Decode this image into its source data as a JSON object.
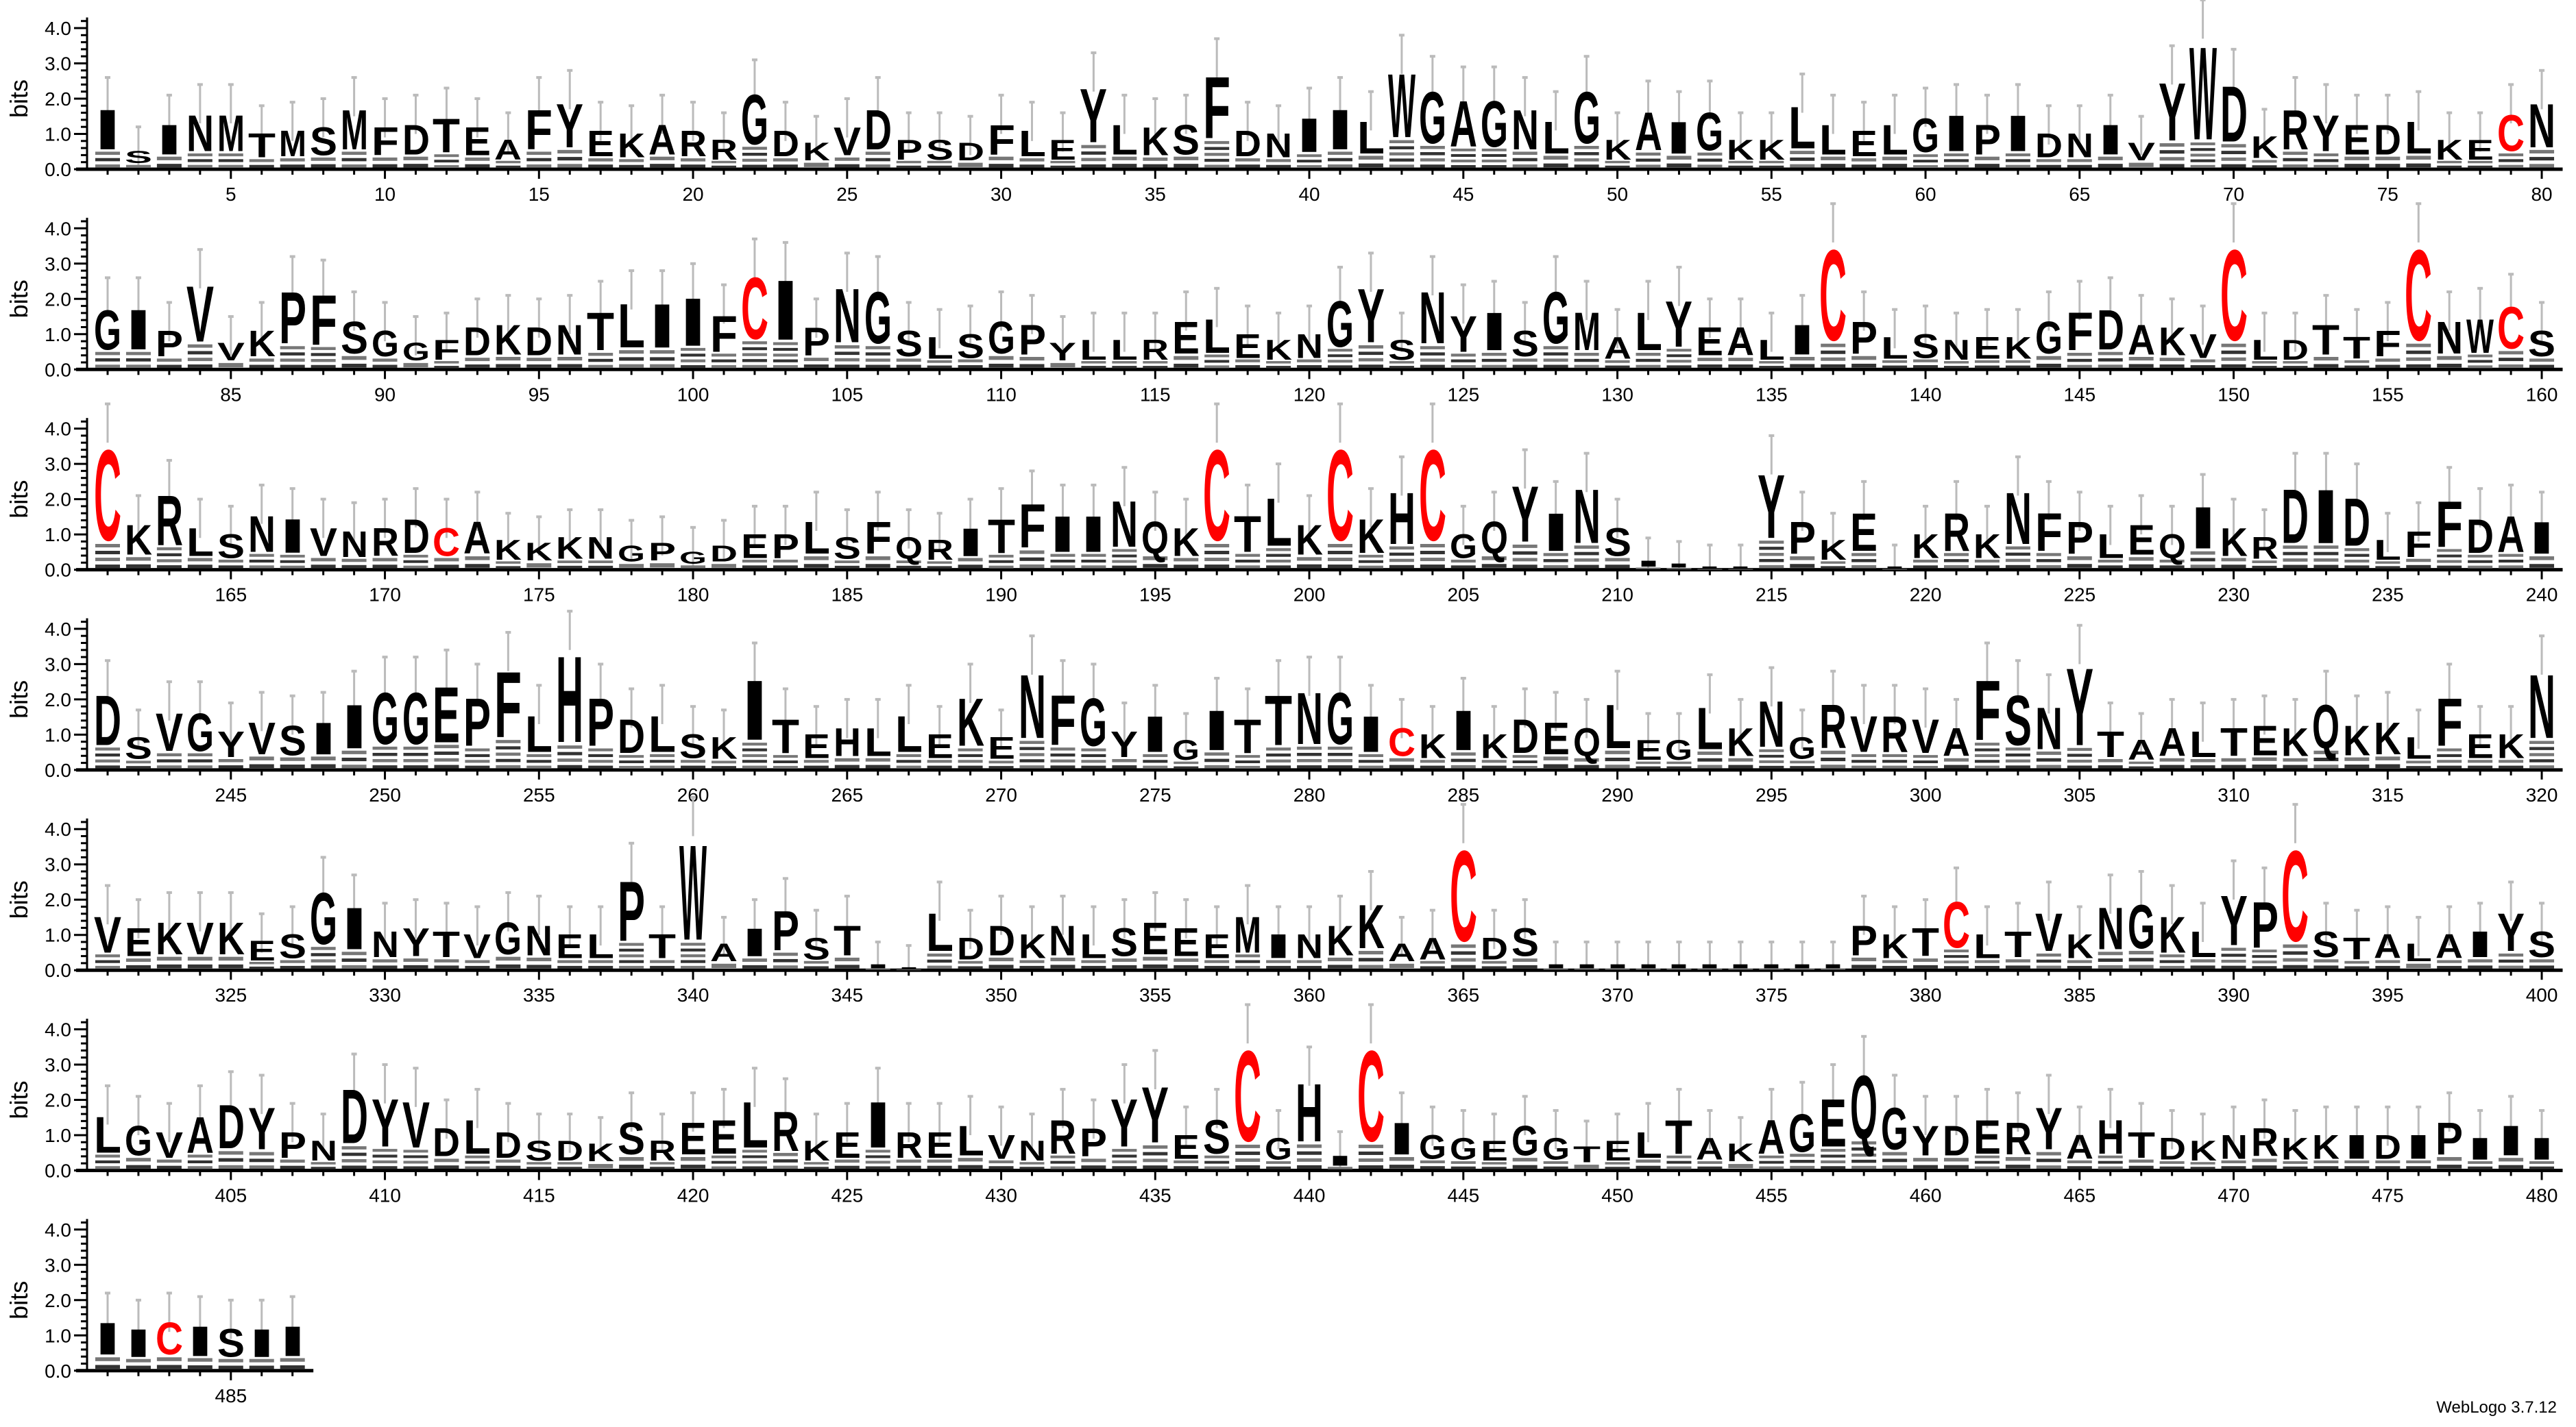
{
  "chart_data": {
    "type": "sequence_logo",
    "ylabel": "bits",
    "ylim": [
      0,
      4.3
    ],
    "ytick_labels": [
      "0.0",
      "1.0",
      "2.0",
      "3.0",
      "4.0"
    ],
    "first_position": 1,
    "last_position": 487,
    "xtick_labels": [
      "5",
      "10",
      "15",
      "20",
      "25",
      "30",
      "35",
      "40",
      "45",
      "50",
      "55",
      "60",
      "65",
      "70",
      "75",
      "80",
      "85",
      "90",
      "95",
      "100",
      "105",
      "110",
      "115",
      "120",
      "125",
      "130",
      "135",
      "140",
      "145",
      "150",
      "155",
      "160",
      "165",
      "170",
      "175",
      "180",
      "185",
      "190",
      "195",
      "200",
      "205",
      "210",
      "215",
      "220",
      "225",
      "230",
      "235",
      "240",
      "245",
      "250",
      "255",
      "260",
      "265",
      "270",
      "275",
      "280",
      "285",
      "290",
      "295",
      "300",
      "305",
      "310",
      "315",
      "320",
      "325",
      "330",
      "335",
      "340",
      "345",
      "350",
      "355",
      "360",
      "365",
      "370",
      "375",
      "380",
      "385",
      "390",
      "395",
      "400",
      "405",
      "410",
      "415",
      "420",
      "425",
      "430",
      "435",
      "440",
      "445",
      "450",
      "455",
      "460",
      "465",
      "470",
      "475",
      "480",
      "485"
    ],
    "letters": "ISINMTMSMFDTEAFYEKARRGDKVDPSDFLEYLKSFDNIILWGAGNLGKAIGKKLLELGIPIDNIVYWDKRYEDLKECNGIPVVKPFSGGFDKDNTLIIFCIPNGSLSGPYLLRELEKNGYSNYISGMALYEALICPLSNEKGFDAKVCLDTTFCNWCSCKRLSNIVNRDCAKKKNGPGDEPLSFQRITFIINQKCTLKCKHCGQYINSIIIIYPKEIKRKNFPLEQIKRDIDLFFDAIDSVGYVSIIGGEPFLHPDLSKITEHLLEKENFGYIGITTNGICKIKDEQLEGLKNGRVRVAFSNYTAALTEKQKKLFEKNVEKVKESGINYTVGNELPTWAIPSTIILDDKNLSEEEMINKKAACDSIIIIIIIIIIPKTCLTVKNGKLYPCSTALAIYSLGVADYPNDYVDLDSDKSREELRKEIRELVNRPYYESCGHICIGGEGGTELTAKAGEQGYDERYAHTDKNRKKIDIPIIIIICISII",
    "bits": [
      2.0,
      0.6,
      1.5,
      1.8,
      1.8,
      1.2,
      1.3,
      1.4,
      2.0,
      1.4,
      1.5,
      1.7,
      1.4,
      1.0,
      2.0,
      2.2,
      1.3,
      1.2,
      1.5,
      1.3,
      1.0,
      2.5,
      1.3,
      0.9,
      1.4,
      2.0,
      1.0,
      1.0,
      0.9,
      1.5,
      1.3,
      1.0,
      2.7,
      1.5,
      1.4,
      1.5,
      3.1,
      1.3,
      1.2,
      1.7,
      2.0,
      1.6,
      3.2,
      2.6,
      2.3,
      2.3,
      2.0,
      1.6,
      2.6,
      1.0,
      1.9,
      1.6,
      1.9,
      1.0,
      1.0,
      2.1,
      1.5,
      1.3,
      1.5,
      1.7,
      1.8,
      1.5,
      1.8,
      1.2,
      1.2,
      1.5,
      0.9,
      2.9,
      4.2,
      2.8,
      1.1,
      2.0,
      1.8,
      1.5,
      1.5,
      1.6,
      1.0,
      1.0,
      1.8,
      2.2,
      2.0,
      2.0,
      1.3,
      2.8,
      0.9,
      1.3,
      2.6,
      2.5,
      1.6,
      1.3,
      0.9,
      1.0,
      1.4,
      1.5,
      1.4,
      1.5,
      1.9,
      2.2,
      2.2,
      2.4,
      1.8,
      3.1,
      3.0,
      1.4,
      2.7,
      2.6,
      1.3,
      1.1,
      1.2,
      1.6,
      1.5,
      0.9,
      1.0,
      1.0,
      1.0,
      1.6,
      1.7,
      1.2,
      1.0,
      1.2,
      2.3,
      2.7,
      1.0,
      2.6,
      1.8,
      1.9,
      1.3,
      2.6,
      1.9,
      1.1,
      1.9,
      2.3,
      1.4,
      1.4,
      1.0,
      1.5,
      4.1,
      1.6,
      1.1,
      1.2,
      1.0,
      1.1,
      1.1,
      1.6,
      1.9,
      2.0,
      1.5,
      1.4,
      1.2,
      4.1,
      1.0,
      1.0,
      1.5,
      1.1,
      1.3,
      4.1,
      1.6,
      1.7,
      2.1,
      1.3,
      4.1,
      1.5,
      2.5,
      1.4,
      1.2,
      1.8,
      1.7,
      1.4,
      1.3,
      1.4,
      1.7,
      1.4,
      1.6,
      1.0,
      0.9,
      1.1,
      1.1,
      0.8,
      0.9,
      0.6,
      0.8,
      1.2,
      1.2,
      1.6,
      1.1,
      1.6,
      1.1,
      1.0,
      1.4,
      1.7,
      2.2,
      1.8,
      1.8,
      2.3,
      1.6,
      1.4,
      4.1,
      1.8,
      2.4,
      1.5,
      4.1,
      1.7,
      2.6,
      4.1,
      1.2,
      1.6,
      2.8,
      1.9,
      2.7,
      1.4,
      0.3,
      0.2,
      0.1,
      0.1,
      3.2,
      1.6,
      1.0,
      1.9,
      0.1,
      1.2,
      1.9,
      1.2,
      2.6,
      1.9,
      1.6,
      1.2,
      1.5,
      1.2,
      2.1,
      1.4,
      1.1,
      2.7,
      2.7,
      2.4,
      1.0,
      1.3,
      2.3,
      1.7,
      1.8,
      1.6,
      2.5,
      1.1,
      1.9,
      1.9,
      1.3,
      1.6,
      1.5,
      1.6,
      2.2,
      2.6,
      2.6,
      2.8,
      2.4,
      3.3,
      1.8,
      3.9,
      2.4,
      1.7,
      1.8,
      1.2,
      1.1,
      3.0,
      1.7,
      1.2,
      1.4,
      1.4,
      1.8,
      1.2,
      2.4,
      1.1,
      3.2,
      2.5,
      2.4,
      1.3,
      1.8,
      1.0,
      2.0,
      1.7,
      2.5,
      2.6,
      2.6,
      1.8,
      1.4,
      1.2,
      2.0,
      1.2,
      1.7,
      1.6,
      1.4,
      2.2,
      1.0,
      1.0,
      2.1,
      1.4,
      2.3,
      1.1,
      2.2,
      1.8,
      1.8,
      1.7,
      1.4,
      3.0,
      2.5,
      2.1,
      3.5,
      1.3,
      1.0,
      1.4,
      1.3,
      1.4,
      1.5,
      1.4,
      2.2,
      1.5,
      1.6,
      1.1,
      2.4,
      1.2,
      1.2,
      3.2,
      1.8,
      1.4,
      1.6,
      1.6,
      1.6,
      1.0,
      1.2,
      2.6,
      2.1,
      1.3,
      1.4,
      1.3,
      1.2,
      1.6,
      1.5,
      1.2,
      1.2,
      3.0,
      1.2,
      4.3,
      0.9,
      1.4,
      2.0,
      1.1,
      1.5,
      0.2,
      0.1,
      1.9,
      1.1,
      1.5,
      1.2,
      1.5,
      1.2,
      1.4,
      1.6,
      1.4,
      1.2,
      1.8,
      1.2,
      1.2,
      1.5,
      2.2,
      0.9,
      1.1,
      4.1,
      1.1,
      1.4,
      0.2,
      0.2,
      0.2,
      0.2,
      0.2,
      0.2,
      0.2,
      0.2,
      0.2,
      0.2,
      1.5,
      1.2,
      1.4,
      2.3,
      1.2,
      1.3,
      1.9,
      1.2,
      2.1,
      2.2,
      1.8,
      1.3,
      2.5,
      2.3,
      4.1,
      1.3,
      1.1,
      1.2,
      0.9,
      1.2,
      1.3,
      1.9,
      1.3,
      1.8,
      1.5,
      1.3,
      1.8,
      2.2,
      2.1,
      1.3,
      1.0,
      2.7,
      2.4,
      2.3,
      1.4,
      1.7,
      1.3,
      1.0,
      1.0,
      0.9,
      1.6,
      1.0,
      1.6,
      1.7,
      2.3,
      2.0,
      1.0,
      1.3,
      2.3,
      1.3,
      1.3,
      1.5,
      1.2,
      1.0,
      1.7,
      1.4,
      2.4,
      2.8,
      1.2,
      1.7,
      4.1,
      1.1,
      2.9,
      0.5,
      4.1,
      1.6,
      1.2,
      1.1,
      1.0,
      1.5,
      1.1,
      0.8,
      1.0,
      1.3,
      1.7,
      1.1,
      0.9,
      1.7,
      1.9,
      2.4,
      3.2,
      2.1,
      1.5,
      1.5,
      1.7,
      1.6,
      2.1,
      1.2,
      1.7,
      1.3,
      1.1,
      1.0,
      1.2,
      1.4,
      1.1,
      1.2,
      1.2,
      1.2,
      1.2,
      1.6,
      1.1,
      1.5,
      1.1,
      1.6,
      1.4,
      1.6,
      1.5,
      1.4,
      1.4,
      1.5
    ],
    "colors": {
      "C": "#ff0000",
      "default": "#000000",
      "error_bar": "#bbbbbb"
    }
  },
  "footer": "WebLogo 3.7.12"
}
